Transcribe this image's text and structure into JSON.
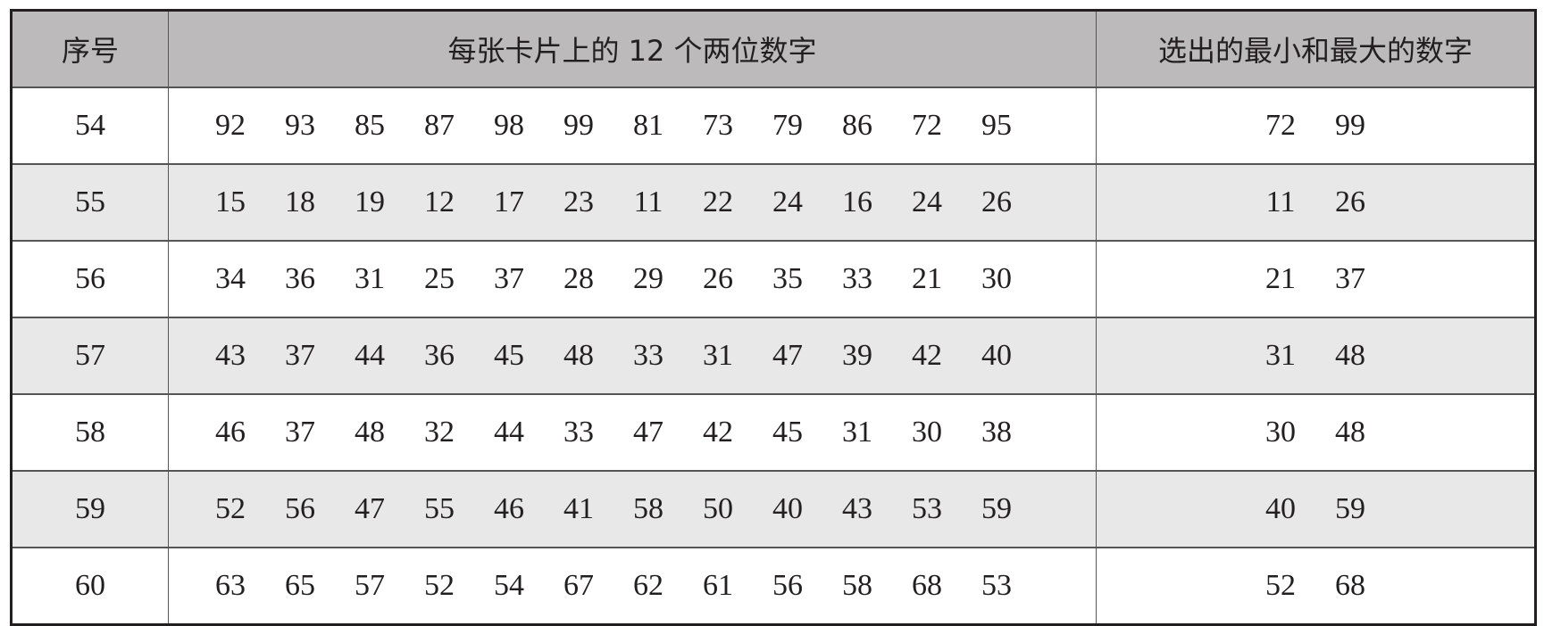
{
  "headers": [
    "序号",
    "每张卡片上的 12 个两位数字",
    "选出的最小和最大的数字"
  ],
  "rows": [
    {
      "id": "54",
      "numbers": [
        "92",
        "93",
        "85",
        "87",
        "98",
        "99",
        "81",
        "73",
        "79",
        "86",
        "72",
        "95"
      ],
      "minmax": [
        "72",
        "99"
      ]
    },
    {
      "id": "55",
      "numbers": [
        "15",
        "18",
        "19",
        "12",
        "17",
        "23",
        "11",
        "22",
        "24",
        "16",
        "24",
        "26"
      ],
      "minmax": [
        "11",
        "26"
      ]
    },
    {
      "id": "56",
      "numbers": [
        "34",
        "36",
        "31",
        "25",
        "37",
        "28",
        "29",
        "26",
        "35",
        "33",
        "21",
        "30"
      ],
      "minmax": [
        "21",
        "37"
      ]
    },
    {
      "id": "57",
      "numbers": [
        "43",
        "37",
        "44",
        "36",
        "45",
        "48",
        "33",
        "31",
        "47",
        "39",
        "42",
        "40"
      ],
      "minmax": [
        "31",
        "48"
      ]
    },
    {
      "id": "58",
      "numbers": [
        "46",
        "37",
        "48",
        "32",
        "44",
        "33",
        "47",
        "42",
        "45",
        "31",
        "30",
        "38"
      ],
      "minmax": [
        "30",
        "48"
      ]
    },
    {
      "id": "59",
      "numbers": [
        "52",
        "56",
        "47",
        "55",
        "46",
        "41",
        "58",
        "50",
        "40",
        "43",
        "53",
        "59"
      ],
      "minmax": [
        "40",
        "59"
      ]
    },
    {
      "id": "60",
      "numbers": [
        "63",
        "65",
        "57",
        "52",
        "54",
        "67",
        "62",
        "61",
        "56",
        "58",
        "68",
        "53"
      ],
      "minmax": [
        "52",
        "68"
      ]
    }
  ],
  "colors": {
    "header_bg": "#bcbabb",
    "alt_row_bg": "#e8e8e8",
    "border": "#231f20"
  }
}
